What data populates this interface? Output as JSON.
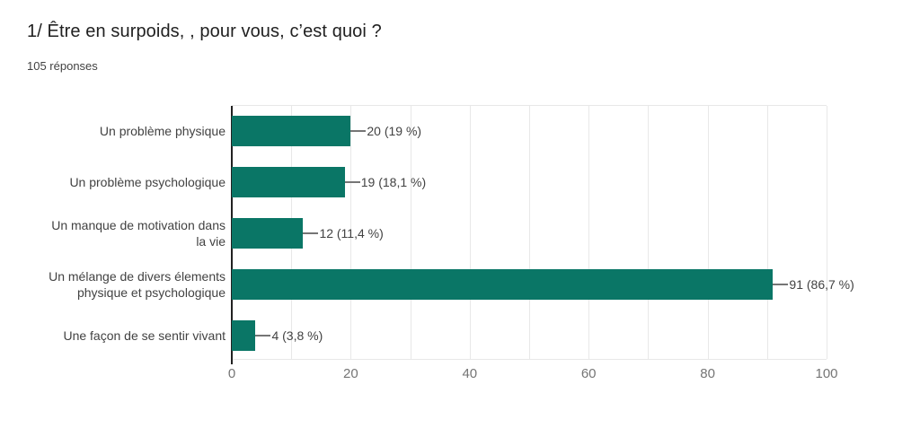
{
  "header": {
    "title": "1/ Être en surpoids, , pour vous, c’est quoi ?",
    "responses_count": "105 réponses"
  },
  "colors": {
    "bar": "#0a7666",
    "axis": "#212121",
    "gridline": "#e8e8e8",
    "category_text": "#424242",
    "value_text": "#424242",
    "tick_text": "#757575",
    "connector": "#757575"
  },
  "chart_data": {
    "type": "bar",
    "orientation": "horizontal",
    "title": "1/ Être en surpoids, , pour vous, c’est quoi ?",
    "subtitle": "105 réponses",
    "categories": [
      "Un problème physique",
      "Un problème psychologique",
      "Un manque de motivation dans\nla vie",
      "Un mélange de divers élements\nphysique et psychologique",
      "Une façon de se sentir vivant"
    ],
    "values": [
      20,
      19,
      12,
      91,
      4
    ],
    "value_labels": [
      "20 (19 %)",
      "19 (18,1 %)",
      "12 (11,4 %)",
      "91 (86,7 %)",
      "4 (3,8 %)"
    ],
    "xlim": [
      0,
      100
    ],
    "xticks": [
      0,
      20,
      40,
      60,
      80,
      100
    ],
    "gridline_step": 10,
    "grid": true,
    "legend": "none"
  }
}
